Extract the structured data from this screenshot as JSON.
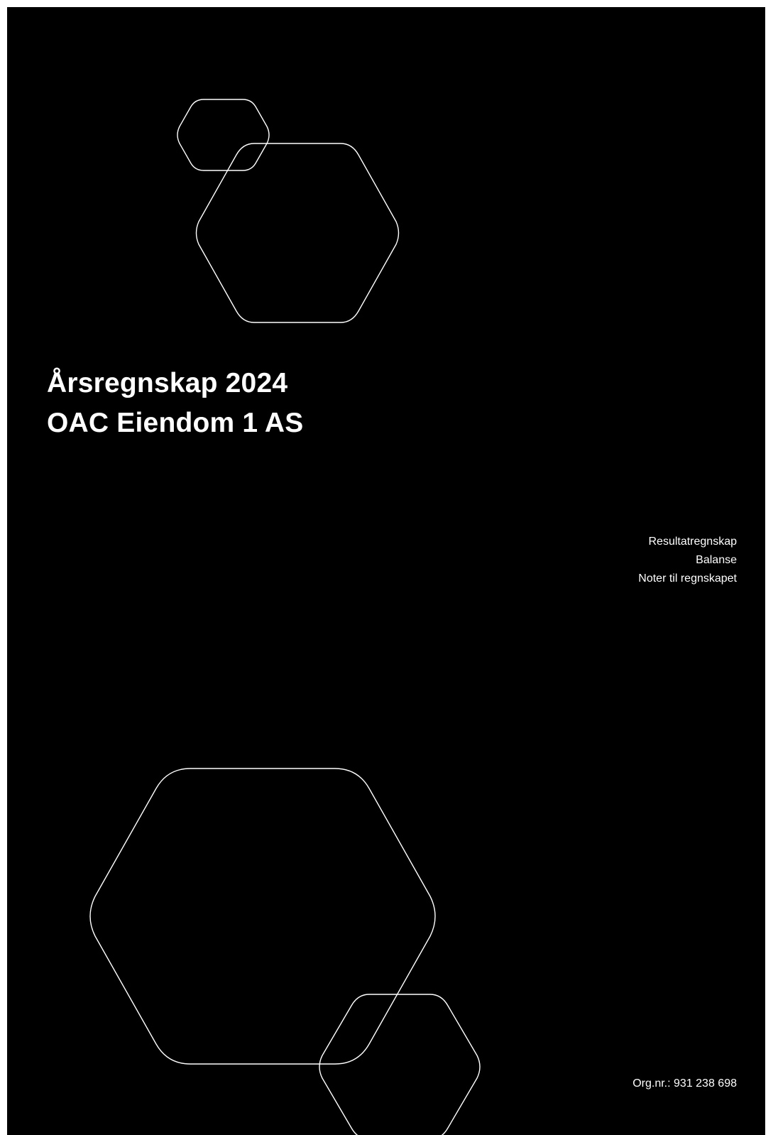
{
  "cover": {
    "title": "Årsregnskap 2024",
    "company": "OAC Eiendom 1 AS",
    "contents": [
      "Resultatregnskap",
      "Balanse",
      "Noter til regnskapet"
    ],
    "org_number": "Org.nr.: 931 238 698",
    "colors": {
      "background": "#000000",
      "foreground": "#ffffff"
    },
    "decoration": "hexagon-outline-icon"
  }
}
